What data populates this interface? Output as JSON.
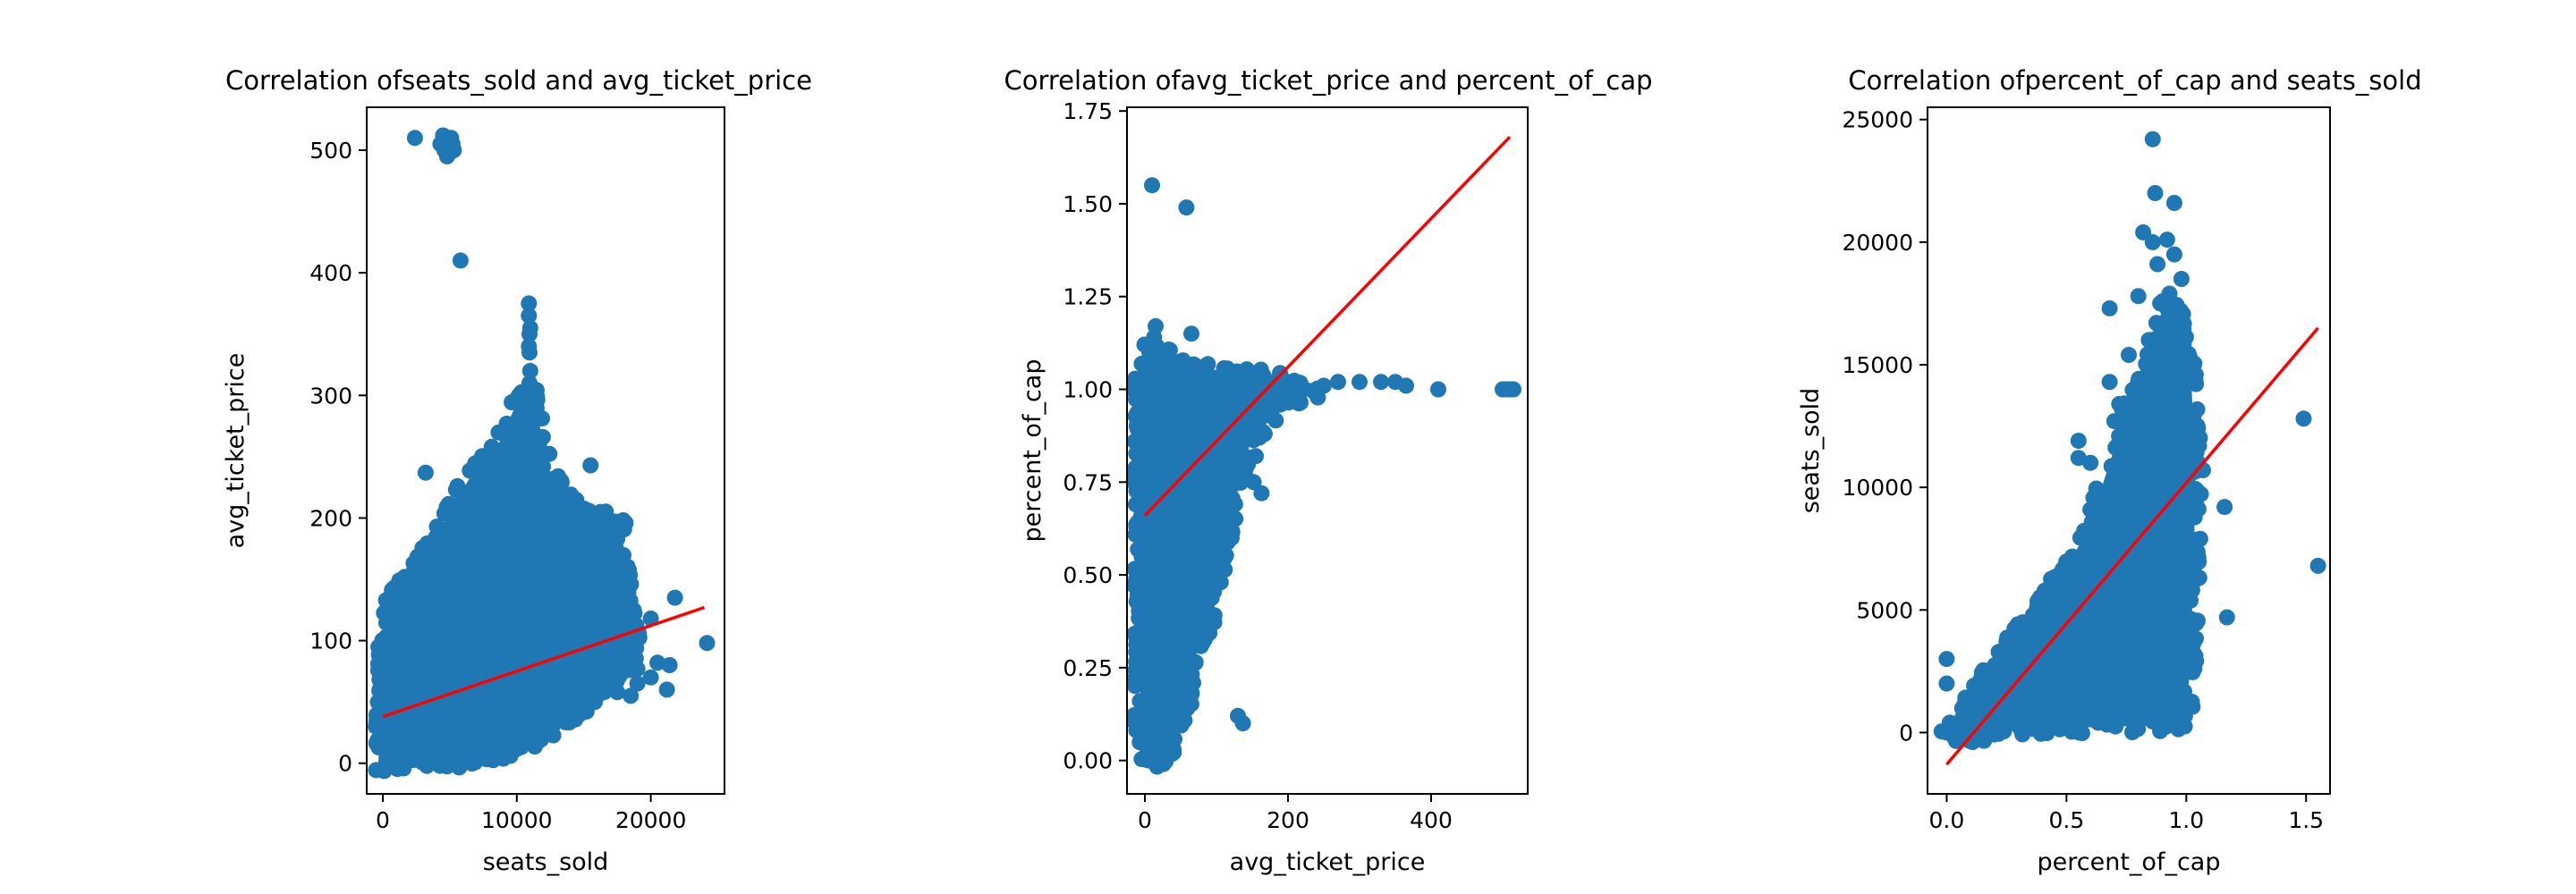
{
  "colors": {
    "points": "#1f77b4",
    "fit_line": "#ff0000",
    "axes": "#000000",
    "background": "#ffffff"
  },
  "chart_data": [
    {
      "type": "scatter",
      "title": "Correlation ofseats_sold and avg_ticket_price",
      "xlabel": "seats_sold",
      "ylabel": "avg_ticket_price",
      "xlim": [
        -1200,
        25500
      ],
      "ylim": [
        -25,
        535
      ],
      "xticks": [
        0,
        10000,
        20000
      ],
      "xtick_labels": [
        "0",
        "10000",
        "20000"
      ],
      "yticks": [
        0,
        100,
        200,
        300,
        400,
        500
      ],
      "ytick_labels": [
        "0",
        "100",
        "200",
        "300",
        "400",
        "500"
      ],
      "grid": false,
      "legend": "none",
      "point_cloud": {
        "note_free_shape": true,
        "hull": [
          [
            0,
            0
          ],
          [
            300,
            60
          ],
          [
            600,
            125
          ],
          [
            1500,
            140
          ],
          [
            3500,
            170
          ],
          [
            7000,
            235
          ],
          [
            9000,
            260
          ],
          [
            10000,
            285
          ],
          [
            11000,
            300
          ],
          [
            12000,
            235
          ],
          [
            14500,
            200
          ],
          [
            17500,
            195
          ],
          [
            17800,
            150
          ],
          [
            18500,
            90
          ],
          [
            16000,
            60
          ],
          [
            13000,
            35
          ],
          [
            10000,
            15
          ],
          [
            6000,
            5
          ],
          [
            2000,
            3
          ],
          [
            400,
            0
          ]
        ],
        "dense_core": [
          [
            0,
            0
          ],
          [
            500,
            80
          ],
          [
            3000,
            110
          ],
          [
            7000,
            135
          ],
          [
            10000,
            160
          ],
          [
            12500,
            150
          ],
          [
            14500,
            130
          ],
          [
            15500,
            100
          ],
          [
            15000,
            60
          ],
          [
            12000,
            30
          ],
          [
            8000,
            12
          ],
          [
            3000,
            5
          ]
        ]
      },
      "points": [
        [
          2400,
          510
        ],
        [
          4300,
          505
        ],
        [
          4600,
          500
        ],
        [
          5100,
          510
        ],
        [
          4800,
          495
        ],
        [
          5300,
          500
        ],
        [
          4500,
          512
        ],
        [
          5000,
          498
        ],
        [
          4700,
          508
        ],
        [
          5200,
          505
        ],
        [
          5800,
          410
        ],
        [
          10900,
          375
        ],
        [
          10900,
          365
        ],
        [
          11000,
          355
        ],
        [
          10950,
          350
        ],
        [
          10900,
          340
        ],
        [
          10950,
          335
        ],
        [
          11000,
          320
        ],
        [
          10950,
          310
        ],
        [
          10900,
          300
        ],
        [
          11000,
          295
        ],
        [
          10900,
          290
        ],
        [
          10950,
          285
        ],
        [
          11000,
          278
        ],
        [
          3200,
          237
        ],
        [
          10000,
          265
        ],
        [
          15500,
          243
        ],
        [
          12100,
          230
        ],
        [
          13800,
          198
        ],
        [
          17600,
          195
        ],
        [
          17500,
          183
        ],
        [
          20000,
          118
        ],
        [
          21800,
          135
        ],
        [
          24200,
          98
        ],
        [
          20500,
          82
        ],
        [
          21400,
          80
        ],
        [
          20000,
          70
        ],
        [
          21200,
          60
        ],
        [
          19000,
          65
        ],
        [
          18500,
          55
        ],
        [
          17500,
          58
        ],
        [
          19000,
          77
        ]
      ],
      "fit_line": {
        "x": [
          0,
          24000
        ],
        "y": [
          38,
          127
        ]
      }
    },
    {
      "type": "scatter",
      "title": "Correlation ofavg_ticket_price and percent_of_cap",
      "xlabel": "avg_ticket_price",
      "ylabel": "percent_of_cap",
      "xlim": [
        -25,
        535
      ],
      "ylim": [
        -0.09,
        1.76
      ],
      "xticks": [
        0,
        200,
        400
      ],
      "xtick_labels": [
        "0",
        "200",
        "400"
      ],
      "yticks": [
        0,
        0.25,
        0.5,
        0.75,
        1.0,
        1.25,
        1.5,
        1.75
      ],
      "ytick_labels": [
        "0.00",
        "0.25",
        "0.50",
        "0.75",
        "1.00",
        "1.25",
        "1.50",
        "1.75"
      ],
      "grid": false,
      "legend": "none",
      "point_cloud": {
        "hull": [
          [
            0,
            0.1
          ],
          [
            0,
            1.05
          ],
          [
            10,
            1.12
          ],
          [
            30,
            1.08
          ],
          [
            60,
            1.05
          ],
          [
            100,
            1.04
          ],
          [
            150,
            1.03
          ],
          [
            200,
            1.02
          ],
          [
            240,
            1.0
          ],
          [
            190,
            0.98
          ],
          [
            140,
            0.85
          ],
          [
            120,
            0.7
          ],
          [
            100,
            0.55
          ],
          [
            90,
            0.4
          ],
          [
            60,
            0.3
          ],
          [
            50,
            0.15
          ],
          [
            30,
            0.02
          ],
          [
            10,
            0
          ]
        ],
        "dense_core": [
          [
            0,
            0.2
          ],
          [
            0,
            1.0
          ],
          [
            80,
            1.02
          ],
          [
            150,
            1.0
          ],
          [
            130,
            0.85
          ],
          [
            100,
            0.7
          ],
          [
            80,
            0.5
          ],
          [
            60,
            0.35
          ],
          [
            30,
            0.25
          ]
        ]
      },
      "points": [
        [
          10,
          1.55
        ],
        [
          58,
          1.49
        ],
        [
          15,
          1.17
        ],
        [
          65,
          1.15
        ],
        [
          42,
          1.07
        ],
        [
          5,
          0.0
        ],
        [
          10,
          0.0
        ],
        [
          15,
          0.0
        ],
        [
          20,
          0.0
        ],
        [
          28,
          0.0
        ],
        [
          130,
          0.12
        ],
        [
          137,
          0.1
        ],
        [
          155,
          0.82
        ],
        [
          152,
          0.75
        ],
        [
          163,
          0.72
        ],
        [
          250,
          1.01
        ],
        [
          270,
          1.02
        ],
        [
          300,
          1.02
        ],
        [
          330,
          1.02
        ],
        [
          350,
          1.02
        ],
        [
          365,
          1.01
        ],
        [
          410,
          1.0
        ],
        [
          500,
          1.0
        ],
        [
          505,
          1.0
        ],
        [
          510,
          1.0
        ],
        [
          515,
          1.0
        ]
      ],
      "fit_line": {
        "x": [
          0,
          510
        ],
        "y": [
          0.66,
          1.68
        ]
      }
    },
    {
      "type": "scatter",
      "title": "Correlation ofpercent_of_cap and seats_sold",
      "xlabel": "percent_of_cap",
      "ylabel": "seats_sold",
      "xlim": [
        -0.08,
        1.6
      ],
      "ylim": [
        -2500,
        25500
      ],
      "xticks": [
        0.0,
        0.5,
        1.0,
        1.5
      ],
      "xtick_labels": [
        "0.0",
        "0.5",
        "1.0",
        "1.5"
      ],
      "yticks": [
        0,
        5000,
        10000,
        15000,
        20000,
        25000
      ],
      "ytick_labels": [
        "0",
        "5000",
        "10000",
        "15000",
        "20000",
        "25000"
      ],
      "grid": false,
      "legend": "none",
      "point_cloud": {
        "hull": [
          [
            0.0,
            0
          ],
          [
            0.05,
            200
          ],
          [
            0.2,
            2500
          ],
          [
            0.4,
            5000
          ],
          [
            0.6,
            8000
          ],
          [
            0.8,
            14000
          ],
          [
            0.93,
            17500
          ],
          [
            1.0,
            15000
          ],
          [
            1.02,
            10000
          ],
          [
            1.0,
            3000
          ],
          [
            0.98,
            500
          ],
          [
            0.6,
            400
          ],
          [
            0.3,
            300
          ],
          [
            0.1,
            0
          ]
        ],
        "dense_core": [
          [
            0.15,
            1500
          ],
          [
            0.4,
            4500
          ],
          [
            0.6,
            7500
          ],
          [
            0.8,
            11500
          ],
          [
            0.95,
            13500
          ],
          [
            1.0,
            8000
          ],
          [
            0.98,
            1200
          ],
          [
            0.5,
            800
          ]
        ]
      },
      "points": [
        [
          0.0,
          3000
        ],
        [
          0.0,
          2000
        ],
        [
          0.0,
          0
        ],
        [
          0.02,
          50
        ],
        [
          0.86,
          24200
        ],
        [
          0.87,
          22000
        ],
        [
          0.95,
          21600
        ],
        [
          0.82,
          20400
        ],
        [
          0.86,
          20000
        ],
        [
          0.92,
          20100
        ],
        [
          0.95,
          19500
        ],
        [
          0.88,
          19100
        ],
        [
          0.98,
          18500
        ],
        [
          0.8,
          17800
        ],
        [
          0.93,
          17900
        ],
        [
          0.68,
          17300
        ],
        [
          0.76,
          15400
        ],
        [
          0.97,
          16900
        ],
        [
          0.55,
          11900
        ],
        [
          0.55,
          11200
        ],
        [
          0.6,
          11000
        ],
        [
          0.68,
          14300
        ],
        [
          0.7,
          12700
        ],
        [
          0.72,
          13400
        ],
        [
          1.05,
          11000
        ],
        [
          1.07,
          10700
        ],
        [
          1.16,
          9200
        ],
        [
          1.17,
          4700
        ],
        [
          1.49,
          12800
        ],
        [
          1.55,
          6800
        ]
      ],
      "fit_line": {
        "x": [
          0.0,
          1.55
        ],
        "y": [
          -1300,
          16500
        ]
      }
    }
  ]
}
